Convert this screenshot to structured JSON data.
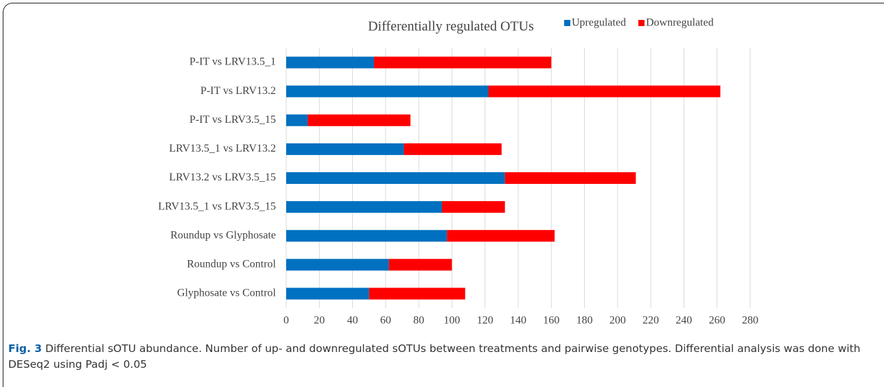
{
  "chart_data": {
    "type": "stacked_barh",
    "title": "Differentially regulated OTUs",
    "categories": [
      "P-IT vs LRV13.5_1",
      "P-IT vs LRV13.2",
      "P-IT vs LRV3.5_15",
      "LRV13.5_1 vs LRV13.2",
      "LRV13.2 vs LRV3.5_15",
      "LRV13.5_1 vs LRV3.5_15",
      "Roundup vs Glyphosate",
      "Roundup vs Control",
      "Glyphosate vs Control"
    ],
    "series": [
      {
        "name": "Upregulated",
        "color": "#0070c0",
        "values": [
          53,
          122,
          13,
          71,
          132,
          94,
          97,
          62,
          50
        ]
      },
      {
        "name": "Downregulated",
        "color": "#ff0000",
        "values": [
          107,
          140,
          62,
          59,
          79,
          38,
          65,
          38,
          58
        ]
      }
    ],
    "xlim": [
      0,
      280
    ],
    "xticks": [
      0,
      20,
      40,
      60,
      80,
      100,
      120,
      140,
      160,
      180,
      200,
      220,
      240,
      260,
      280
    ],
    "grid": true,
    "legend": "top"
  },
  "caption": {
    "label": "Fig. 3",
    "text": "Differential sOTU abundance. Number of up- and downregulated sOTUs between treatments and pairwise genotypes. Differential analysis was done with DESeq2 using Padj < 0.05"
  }
}
